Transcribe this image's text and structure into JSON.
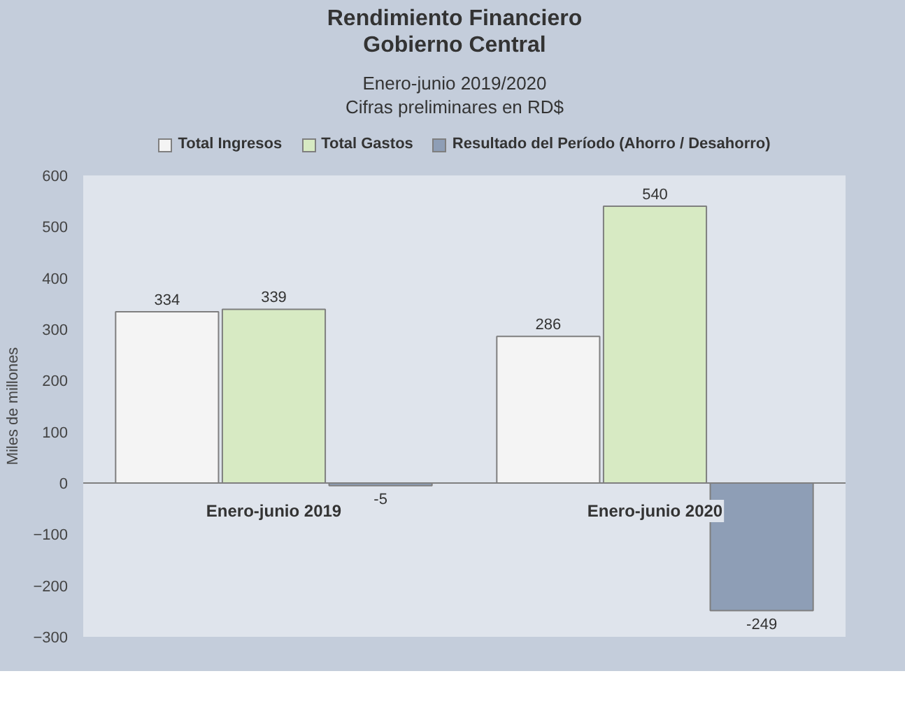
{
  "chart_data": {
    "type": "bar",
    "title": "Rendimiento Financiero\nGobierno Central",
    "subtitle": "Enero-junio 2019/2020\nCifras preliminares en RD$",
    "ylabel": "Miles de millones",
    "categories": [
      "Enero-junio 2019",
      "Enero-junio 2020"
    ],
    "series": [
      {
        "name": "Total Ingresos",
        "color": "#f4f4f4",
        "values": [
          334,
          286
        ]
      },
      {
        "name": "Total Gastos",
        "color": "#d7eac3",
        "values": [
          339,
          540
        ]
      },
      {
        "name": "Resultado del Período (Ahorro / Desahorro)",
        "color": "#8e9eb6",
        "values": [
          -5,
          -249
        ]
      }
    ],
    "ylim": [
      -300,
      600
    ],
    "yticks": [
      -300,
      -200,
      -100,
      0,
      100,
      200,
      300,
      400,
      500,
      600
    ],
    "grid": false,
    "legend": "top",
    "data_labels": true
  }
}
